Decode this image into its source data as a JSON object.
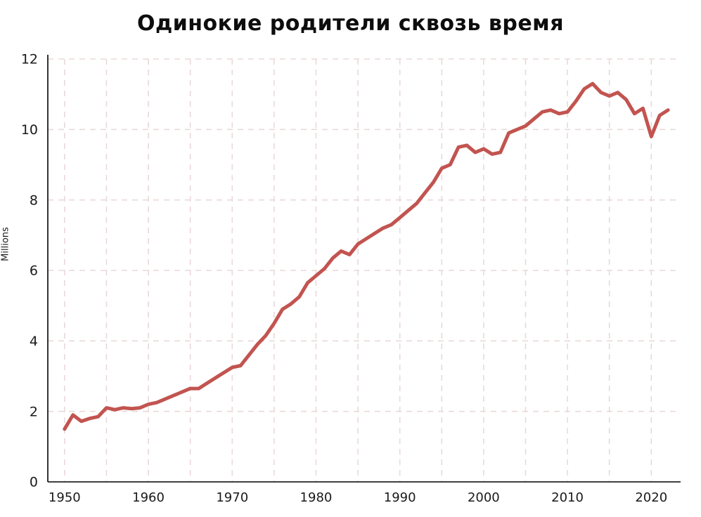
{
  "title": "Одинокие родители сквозь время",
  "chart_data": {
    "type": "line",
    "title": "Одинокие родители сквозь время",
    "xlabel": "",
    "ylabel": "Millions",
    "x": [
      1950,
      1951,
      1952,
      1953,
      1954,
      1955,
      1956,
      1957,
      1958,
      1959,
      1960,
      1961,
      1962,
      1963,
      1964,
      1965,
      1966,
      1967,
      1968,
      1969,
      1970,
      1971,
      1972,
      1973,
      1974,
      1975,
      1976,
      1977,
      1978,
      1979,
      1980,
      1981,
      1982,
      1983,
      1984,
      1985,
      1986,
      1987,
      1988,
      1989,
      1990,
      1991,
      1992,
      1993,
      1994,
      1995,
      1996,
      1997,
      1998,
      1999,
      2000,
      2001,
      2002,
      2003,
      2004,
      2005,
      2006,
      2007,
      2008,
      2009,
      2010,
      2011,
      2012,
      2013,
      2014,
      2015,
      2016,
      2017,
      2018,
      2019,
      2020,
      2021,
      2022
    ],
    "values": [
      1.5,
      1.9,
      1.72,
      1.8,
      1.85,
      2.1,
      2.05,
      2.1,
      2.08,
      2.1,
      2.2,
      2.25,
      2.35,
      2.45,
      2.55,
      2.65,
      2.65,
      2.8,
      2.95,
      3.1,
      3.25,
      3.3,
      3.6,
      3.9,
      4.15,
      4.5,
      4.9,
      5.05,
      5.25,
      5.65,
      5.85,
      6.05,
      6.35,
      6.55,
      6.45,
      6.75,
      6.9,
      7.05,
      7.2,
      7.3,
      7.5,
      7.7,
      7.9,
      8.2,
      8.5,
      8.9,
      9.0,
      9.5,
      9.55,
      9.35,
      9.45,
      9.3,
      9.35,
      9.9,
      10.0,
      10.1,
      10.3,
      10.5,
      10.55,
      10.45,
      10.5,
      10.8,
      11.15,
      11.3,
      11.05,
      10.95,
      11.05,
      10.85,
      10.45,
      10.6,
      9.8,
      10.4,
      10.55
    ],
    "xticks": [
      1950,
      1960,
      1970,
      1980,
      1990,
      2000,
      2010,
      2020
    ],
    "yticks": [
      0,
      2,
      4,
      6,
      8,
      10,
      12
    ],
    "xlim": [
      1948,
      2023.5
    ],
    "ylim": [
      0,
      12
    ],
    "x_grid_step": 5,
    "grid": true,
    "legend": "none",
    "line_color": "#c25450",
    "grid_color": "#ead9d9",
    "axis_color": "#000000",
    "tick_color": "#1a1a1a",
    "background": "#ffffff"
  }
}
